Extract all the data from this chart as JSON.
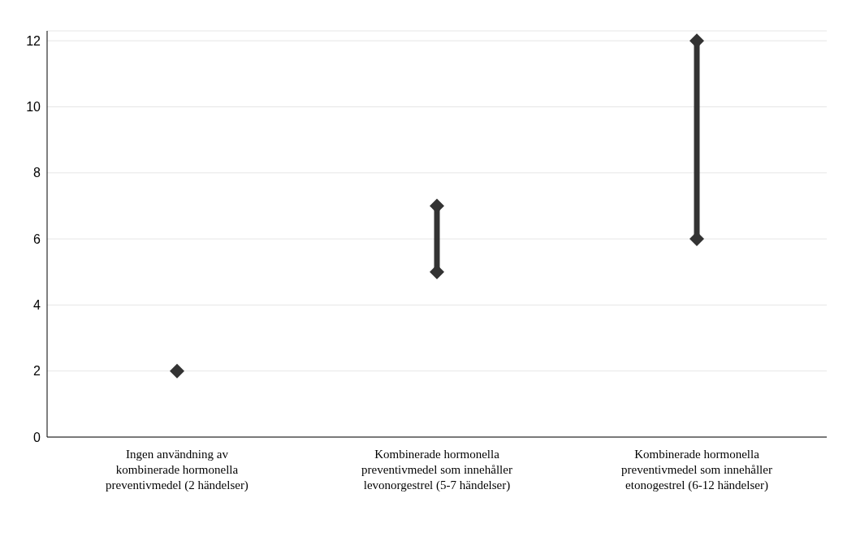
{
  "chart_data": {
    "type": "line",
    "categories": [
      "Ingen användning av kombinerade hormonella preventivmedel (2 händelser)",
      "Kombinerade hormonella preventivmedel som innehåller levonorgestrel (5-7 händelser)",
      "Kombinerade hormonella preventivmedel som innehåller etonogestrel (6-12 händelser)"
    ],
    "series": [
      {
        "color": "#333333",
        "x": [
          "Ingen användning av kombinerade hormonella preventivmedel (2 händelser)"
        ],
        "values": [
          2
        ]
      },
      {
        "color": "#333333",
        "x": [
          "Kombinerade hormonella preventivmedel som innehåller levonorgestrel (5-7 händelser)",
          "Kombinerade hormonella preventivmedel som innehåller levonorgestrel (5-7 händelser)"
        ],
        "values": [
          5,
          7
        ]
      },
      {
        "color": "#333333",
        "x": [
          "Kombinerade hormonella preventivmedel som innehåller etonogestrel (6-12 händelser)",
          "Kombinerade hormonella preventivmedel som innehåller etonogestrel (6-12 händelser)"
        ],
        "values": [
          6,
          12
        ]
      }
    ],
    "ylim": [
      0,
      12.3
    ],
    "yticks": [
      0,
      2,
      4,
      6,
      8,
      10,
      12
    ],
    "grid": "y",
    "marker": "diamond",
    "line_style": "solid"
  }
}
